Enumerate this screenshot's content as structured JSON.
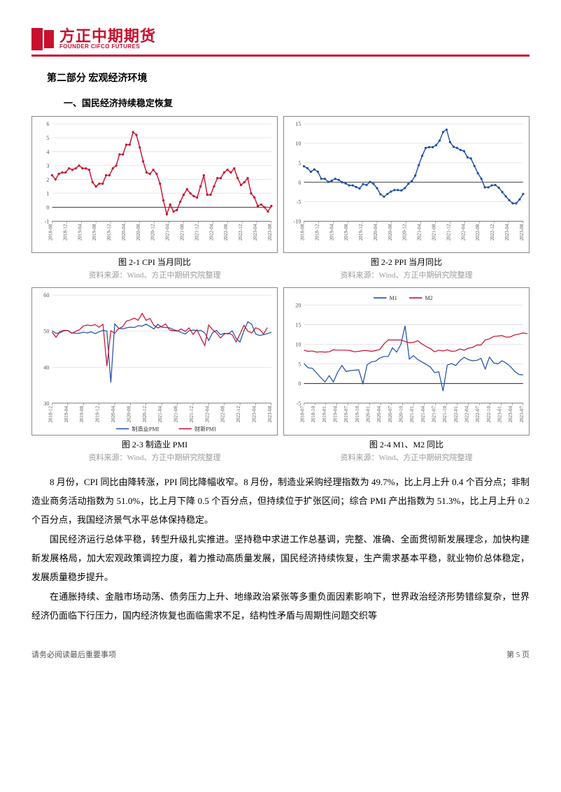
{
  "brand": {
    "cn": "方正中期期货",
    "en": "FOUNDER CIFCO FUTURES",
    "color": "#c8102e"
  },
  "section_title": "第二部分 宏观经济环境",
  "subsection_title": "一、国民经济持续稳定恢复",
  "charts": {
    "cpi": {
      "caption": "图 2-1 CPI 当月同比",
      "source": "资料来源：Wind、方正中期研究院整理",
      "type": "line",
      "line_color": "#c8102e",
      "marker": "circle",
      "line_width": 1.4,
      "ylim": [
        -1,
        6
      ],
      "ytick_step": 1,
      "grid_color": "#555555",
      "background_color": "#ffffff",
      "x_labels": [
        "2018-08",
        "2018-12",
        "2019-04",
        "2019-08",
        "2019-12",
        "2020-04",
        "2020-08",
        "2020-12",
        "2021-04",
        "2021-08",
        "2021-12",
        "2022-04",
        "2022-08",
        "2022-12",
        "2023-04",
        "2023-08"
      ],
      "values": [
        2.3,
        2.0,
        2.4,
        2.5,
        2.5,
        2.8,
        2.7,
        2.8,
        3.0,
        2.8,
        2.8,
        2.7,
        1.8,
        1.5,
        1.7,
        1.7,
        2.3,
        2.3,
        2.8,
        3.0,
        3.8,
        3.8,
        4.5,
        4.5,
        5.4,
        5.2,
        4.3,
        3.3,
        2.5,
        2.4,
        2.7,
        2.4,
        1.7,
        0.5,
        -0.5,
        0.2,
        -0.3,
        -0.2,
        0.4,
        0.9,
        1.3,
        1.0,
        0.8,
        0.7,
        1.5,
        2.3,
        0.9,
        0.9,
        1.5,
        2.1,
        2.1,
        2.5,
        2.7,
        2.5,
        2.8,
        2.1,
        1.6,
        1.8,
        2.1,
        1.0,
        0.7,
        0.1,
        0.2,
        0.0,
        -0.3,
        0.1
      ]
    },
    "ppi": {
      "caption": "图 2-2 PPI 当月同比",
      "source": "资料来源：Wind、方正中期研究院整理",
      "type": "line",
      "line_color": "#1f4fa8",
      "marker": "circle",
      "line_width": 1.4,
      "ylim": [
        -10,
        15
      ],
      "ytick_step": 5,
      "grid_color": "#555555",
      "background_color": "#ffffff",
      "x_labels": [
        "2018-08",
        "2018-12",
        "2019-04",
        "2019-08",
        "2019-12",
        "2020-04",
        "2020-08",
        "2020-12",
        "2021-04",
        "2021-08",
        "2021-12",
        "2022-04",
        "2022-08",
        "2022-12",
        "2023-04",
        "2023-08"
      ],
      "values": [
        4.1,
        3.6,
        2.7,
        3.3,
        2.7,
        0.9,
        0.9,
        0.1,
        0.4,
        0.9,
        0.6,
        0.0,
        -0.3,
        -0.8,
        -0.8,
        -1.2,
        -1.6,
        -0.5,
        -0.7,
        0.1,
        -0.4,
        -1.5,
        -3.1,
        -3.7,
        -3.0,
        -2.4,
        -2.0,
        -2.0,
        -2.1,
        -1.5,
        -0.4,
        0.3,
        1.7,
        4.4,
        6.8,
        8.8,
        9.0,
        9.0,
        9.5,
        10.7,
        12.9,
        13.5,
        10.3,
        9.1,
        8.8,
        8.3,
        8.0,
        6.4,
        6.1,
        4.2,
        2.3,
        0.9,
        -1.3,
        -1.3,
        -0.8,
        -0.7,
        -1.4,
        -2.5,
        -3.6,
        -4.6,
        -5.4,
        -5.4,
        -4.4,
        -3.0
      ]
    },
    "pmi": {
      "caption": "图 2-3 制造业 PMI",
      "source": "资料来源：Wind、方正中期研究院整理",
      "type": "line",
      "series": [
        {
          "name": "制造业PMI",
          "color": "#1f4fa8"
        },
        {
          "name": "财新PMI",
          "color": "#c8102e"
        }
      ],
      "line_width": 1.2,
      "ylim": [
        30,
        60
      ],
      "ytick_step": 10,
      "grid_color": "#555555",
      "background_color": "#ffffff",
      "x_labels": [
        "2018-12",
        "2019-04",
        "2019-08",
        "2019-12",
        "2020-04",
        "2020-08",
        "2020-12",
        "2021-04",
        "2021-08",
        "2021-12",
        "2022-04",
        "2022-08",
        "2022-12",
        "2023-04",
        "2023-08"
      ],
      "values_a": [
        50.1,
        49.4,
        49.5,
        50.1,
        50.2,
        49.5,
        49.4,
        49.4,
        49.7,
        49.5,
        49.8,
        49.3,
        49.8,
        50.2,
        50.0,
        35.7,
        52.0,
        50.8,
        50.6,
        50.9,
        51.1,
        51.0,
        51.5,
        51.4,
        51.9,
        51.3,
        50.6,
        51.9,
        51.1,
        51.0,
        50.9,
        50.4,
        50.1,
        49.6,
        49.2,
        50.1,
        50.3,
        50.1,
        50.2,
        49.5,
        47.4,
        49.6,
        50.2,
        49.0,
        49.4,
        49.2,
        50.1,
        48.0,
        47.0,
        50.1,
        52.6,
        51.9,
        49.2,
        48.8,
        49.0,
        49.3,
        49.7
      ],
      "values_b": [
        49.7,
        48.3,
        49.9,
        50.2,
        50.2,
        49.4,
        49.9,
        50.4,
        51.4,
        51.7,
        51.5,
        51.8,
        51.1,
        51.9,
        40.3,
        50.1,
        49.4,
        50.7,
        51.2,
        52.8,
        53.1,
        53.6,
        53.0,
        54.9,
        53.0,
        53.5,
        51.6,
        50.9,
        51.3,
        52.0,
        50.3,
        50.1,
        50.0,
        50.6,
        49.9,
        50.9,
        49.1,
        50.4,
        48.1,
        46.0,
        51.7,
        50.4,
        49.5,
        48.1,
        49.2,
        49.4,
        49.0,
        47.0,
        49.2,
        51.6,
        50.0,
        49.5,
        50.9,
        50.5,
        49.2,
        51.0
      ]
    },
    "m1m2": {
      "caption": "图 2-4 M1、M2 同比",
      "source": "资料来源：Wind、方正中期研究院整理",
      "type": "line",
      "series": [
        {
          "name": "M1",
          "color": "#1f4fa8"
        },
        {
          "name": "M2",
          "color": "#c8102e"
        }
      ],
      "line_width": 1.2,
      "ylim": [
        -5,
        20
      ],
      "ytick_step": 5,
      "grid_color": "#555555",
      "background_color": "#ffffff",
      "x_labels": [
        "2018-07",
        "2018-10",
        "2019-01",
        "2019-04",
        "2019-07",
        "2019-10",
        "2020-01",
        "2020-04",
        "2020-07",
        "2020-10",
        "2021-01",
        "2021-04",
        "2021-07",
        "2021-10",
        "2022-01",
        "2022-04",
        "2022-07",
        "2022-10",
        "2023-01",
        "2023-04",
        "2023-07"
      ],
      "values_m1": [
        5.1,
        4.0,
        3.9,
        2.7,
        1.5,
        0.4,
        2.0,
        0.4,
        2.9,
        4.6,
        3.1,
        3.3,
        3.4,
        3.5,
        0.0,
        4.8,
        5.5,
        5.7,
        6.5,
        6.9,
        6.9,
        9.1,
        8.0,
        10.0,
        14.7,
        6.2,
        7.1,
        6.1,
        5.5,
        4.9,
        4.2,
        2.8,
        3.0,
        -1.9,
        4.7,
        5.1,
        4.6,
        5.8,
        6.7,
        6.1,
        5.8,
        5.9,
        6.4,
        3.7,
        6.7,
        5.3,
        5.0,
        5.8,
        5.2,
        4.3,
        3.1,
        2.3,
        2.2
      ],
      "values_m2": [
        8.5,
        8.2,
        8.3,
        8.0,
        8.1,
        8.0,
        8.1,
        8.6,
        8.5,
        8.5,
        8.5,
        8.4,
        8.1,
        8.2,
        8.4,
        8.4,
        8.2,
        8.4,
        8.7,
        10.1,
        11.1,
        11.1,
        11.1,
        11.1,
        10.7,
        10.4,
        10.5,
        10.9,
        10.1,
        9.4,
        8.9,
        8.1,
        8.5,
        8.3,
        8.6,
        8.2,
        8.3,
        8.8,
        8.5,
        9.0,
        9.2,
        9.8,
        9.8,
        11.1,
        11.4,
        12.0,
        12.1,
        12.2,
        11.8,
        11.9,
        12.4,
        12.6,
        12.9,
        12.7,
        12.4,
        11.6,
        11.3,
        10.7,
        10.6
      ]
    }
  },
  "paragraphs": [
    "8 月份，CPI 同比由降转涨，PPI 同比降幅收窄。8 月份，制造业采购经理指数为 49.7%，比上月上升 0.4 个百分点；非制造业商务活动指数为 51.0%，比上月下降 0.5 个百分点，但持续位于扩张区间；综合 PMI 产出指数为 51.3%，比上月上升 0.2 个百分点，我国经济景气水平总体保持稳定。",
    "国民经济运行总体平稳，转型升级扎实推进。坚持稳中求进工作总基调，完整、准确、全面贯彻新发展理念，加快构建新发展格局，加大宏观政策调控力度，着力推动高质量发展，国民经济持续恢复，生产需求基本平稳，就业物价总体稳定，发展质量稳步提升。",
    "在通胀持续、金融市场动荡、债务压力上升、地缘政治紧张等多重负面因素影响下，世界政治经济形势错综复杂，世界经济仍面临下行压力，国内经济恢复也面临需求不足，结构性矛盾与周期性问题交织等"
  ],
  "footer": {
    "left": "请务必阅读最后重要事项",
    "right": "第 5 页"
  }
}
